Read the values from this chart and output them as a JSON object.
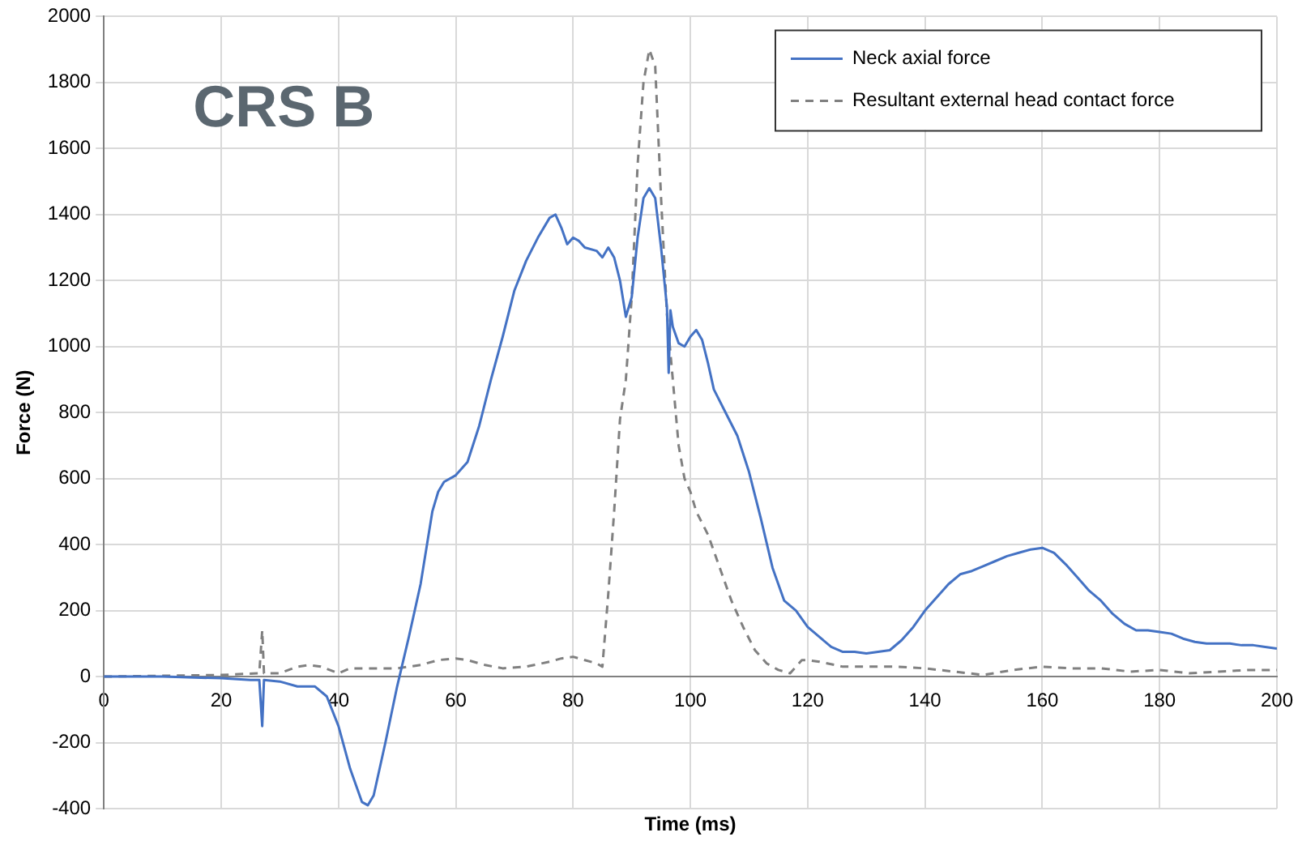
{
  "chart_data": {
    "type": "line",
    "title": "CRS B",
    "xlabel": "Time (ms)",
    "ylabel": "Force (N)",
    "xlim": [
      0,
      200
    ],
    "xticks": [
      0,
      20,
      40,
      60,
      80,
      100,
      120,
      140,
      160,
      180,
      200
    ],
    "ylim": [
      -400,
      2000
    ],
    "yticks": [
      -400,
      -200,
      0,
      200,
      400,
      600,
      800,
      1000,
      1200,
      1400,
      1600,
      1800,
      2000
    ],
    "grid": true,
    "legend": "top right",
    "marker": "none",
    "series": [
      {
        "name": "Neck axial force",
        "color": "#4472c4",
        "line_style": "solid",
        "x": [
          0,
          10,
          20,
          25,
          26.5,
          27,
          27.3,
          30,
          33,
          36,
          38,
          40,
          42,
          44,
          45,
          46,
          48,
          50,
          52,
          54,
          56,
          57,
          58,
          60,
          62,
          64,
          66,
          68,
          70,
          72,
          74,
          76,
          77,
          78,
          79,
          80,
          81,
          82,
          84,
          85,
          86,
          87,
          88,
          89,
          90,
          91,
          92,
          93,
          94,
          95,
          96,
          96.3,
          96.6,
          97,
          98,
          99,
          100,
          101,
          102,
          103,
          104,
          106,
          108,
          110,
          112,
          114,
          116,
          118,
          120,
          122,
          124,
          126,
          128,
          130,
          132,
          134,
          136,
          138,
          140,
          142,
          144,
          146,
          148,
          150,
          152,
          154,
          156,
          158,
          160,
          162,
          164,
          166,
          168,
          170,
          172,
          174,
          176,
          178,
          180,
          182,
          184,
          186,
          188,
          190,
          192,
          194,
          196,
          198,
          200
        ],
        "values": [
          0,
          0,
          -5,
          -10,
          -10,
          -150,
          -10,
          -15,
          -30,
          -30,
          -60,
          -150,
          -280,
          -380,
          -390,
          -360,
          -200,
          -30,
          120,
          280,
          500,
          560,
          590,
          610,
          650,
          760,
          900,
          1030,
          1170,
          1260,
          1330,
          1390,
          1400,
          1360,
          1310,
          1330,
          1320,
          1300,
          1290,
          1270,
          1300,
          1270,
          1200,
          1090,
          1150,
          1330,
          1450,
          1480,
          1450,
          1300,
          1120,
          920,
          1110,
          1060,
          1010,
          1000,
          1030,
          1050,
          1020,
          950,
          870,
          800,
          730,
          620,
          480,
          330,
          230,
          200,
          150,
          120,
          90,
          75,
          75,
          70,
          75,
          80,
          110,
          150,
          200,
          240,
          280,
          310,
          320,
          335,
          350,
          365,
          375,
          385,
          390,
          375,
          340,
          300,
          260,
          230,
          190,
          160,
          140,
          140,
          135,
          130,
          115,
          105,
          100,
          100,
          100,
          95,
          95,
          90,
          85
        ]
      },
      {
        "name": "Resultant external head contact force",
        "color": "#808080",
        "line_style": "dashed",
        "x": [
          0,
          20,
          26.5,
          27,
          27.3,
          30,
          33,
          35,
          37,
          40,
          42,
          45,
          50,
          54,
          57,
          60,
          62,
          65,
          68,
          72,
          76,
          78,
          80,
          82,
          84,
          85,
          86,
          87,
          88,
          89,
          90,
          91,
          92,
          93,
          94,
          95,
          96,
          97,
          98,
          99,
          100,
          101,
          103,
          105,
          107,
          109,
          111,
          113,
          115,
          117,
          119,
          120,
          122,
          126,
          130,
          135,
          140,
          145,
          150,
          155,
          160,
          165,
          170,
          175,
          180,
          185,
          190,
          195,
          200
        ],
        "values": [
          0,
          5,
          10,
          140,
          10,
          10,
          30,
          35,
          30,
          10,
          25,
          25,
          25,
          35,
          50,
          55,
          50,
          35,
          25,
          30,
          45,
          55,
          60,
          50,
          40,
          30,
          250,
          500,
          780,
          900,
          1150,
          1550,
          1800,
          1900,
          1850,
          1450,
          1100,
          900,
          700,
          600,
          560,
          500,
          430,
          330,
          230,
          150,
          80,
          40,
          20,
          10,
          50,
          50,
          45,
          30,
          30,
          30,
          25,
          15,
          5,
          20,
          30,
          25,
          25,
          15,
          20,
          10,
          15,
          20,
          20
        ]
      }
    ]
  }
}
